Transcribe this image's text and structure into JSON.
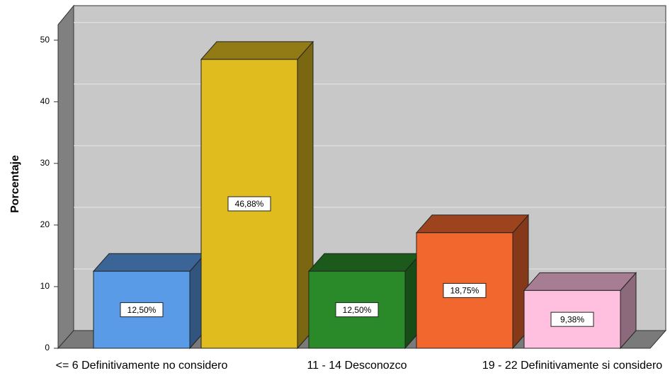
{
  "chart_data": {
    "type": "bar3d",
    "y_label": "Porcentaje",
    "categories": [
      "<= 6 Definitivamente no considero",
      null,
      "11 - 14 Desconozco",
      null,
      "19 - 22 Definitivamente si considero"
    ],
    "values": [
      12.5,
      46.88,
      12.5,
      18.75,
      9.38
    ],
    "value_labels": [
      "12,50%",
      "46,88%",
      "12,50%",
      "18,75%",
      "9,38%"
    ],
    "colors": [
      "#5a9be8",
      "#e0bc1e",
      "#2a8a2a",
      "#f2672e",
      "#ffc0e0"
    ],
    "ylim": [
      0,
      52.5
    ],
    "yticks": [
      0,
      10,
      20,
      30,
      40,
      50
    ],
    "grid": true
  }
}
